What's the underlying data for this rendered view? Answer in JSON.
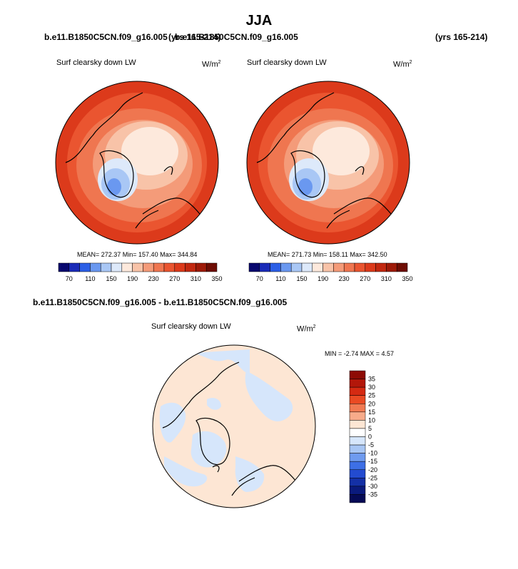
{
  "page": {
    "title": "JJA",
    "case_left": "b.e11.B1850C5CN.f09_g16.005",
    "years_left": "(yrs 165-214)",
    "case_right": "b.e11.B1850C5CN.f09_g16.005",
    "years_right": "(yrs 165-214)",
    "diff_title": "b.e11.B1850C5CN.f09_g16.005 - b.e11.B1850C5CN.f09_g16.005"
  },
  "panels": {
    "left": {
      "variable": "Surf clearsky down LW",
      "units_base": "W/m",
      "units_exp": "2",
      "stats": "MEAN= 272.37  Min= 157.40  Max= 344.84"
    },
    "right": {
      "variable": "Surf clearsky down LW",
      "units_base": "W/m",
      "units_exp": "2",
      "stats": "MEAN= 271.73  Min= 158.11  Max= 342.50"
    },
    "diff": {
      "variable": "Surf clearsky down LW",
      "units_base": "W/m",
      "units_exp": "2",
      "stats": "MIN =  -2.74 MAX =   4.57"
    }
  },
  "colorbar_main": {
    "labels": [
      "70",
      "110",
      "150",
      "190",
      "230",
      "270",
      "310",
      "350"
    ],
    "colors": [
      "#08076e",
      "#1a2bb8",
      "#2c5fe6",
      "#6a98f0",
      "#a9c7f5",
      "#dde9fa",
      "#fde9dc",
      "#f8c3a8",
      "#f49b79",
      "#ef7650",
      "#ea5530",
      "#dc3a1b",
      "#c22810",
      "#9e1a08",
      "#6e0d04"
    ]
  },
  "colorbar_diff": {
    "labels": [
      "35",
      "30",
      "25",
      "20",
      "15",
      "10",
      "5",
      "0",
      "-5",
      "-10",
      "-15",
      "-20",
      "-25",
      "-30",
      "-35"
    ],
    "colors": [
      "#8e0b05",
      "#b3170a",
      "#d52a12",
      "#ea4a23",
      "#f17a52",
      "#f7ab8a",
      "#fde6d4",
      "#ffffff",
      "#d6e6fb",
      "#a8c6f4",
      "#6f9bef",
      "#3d6fe6",
      "#234bd0",
      "#1430a6",
      "#0a1a7c",
      "#050a55"
    ]
  }
}
